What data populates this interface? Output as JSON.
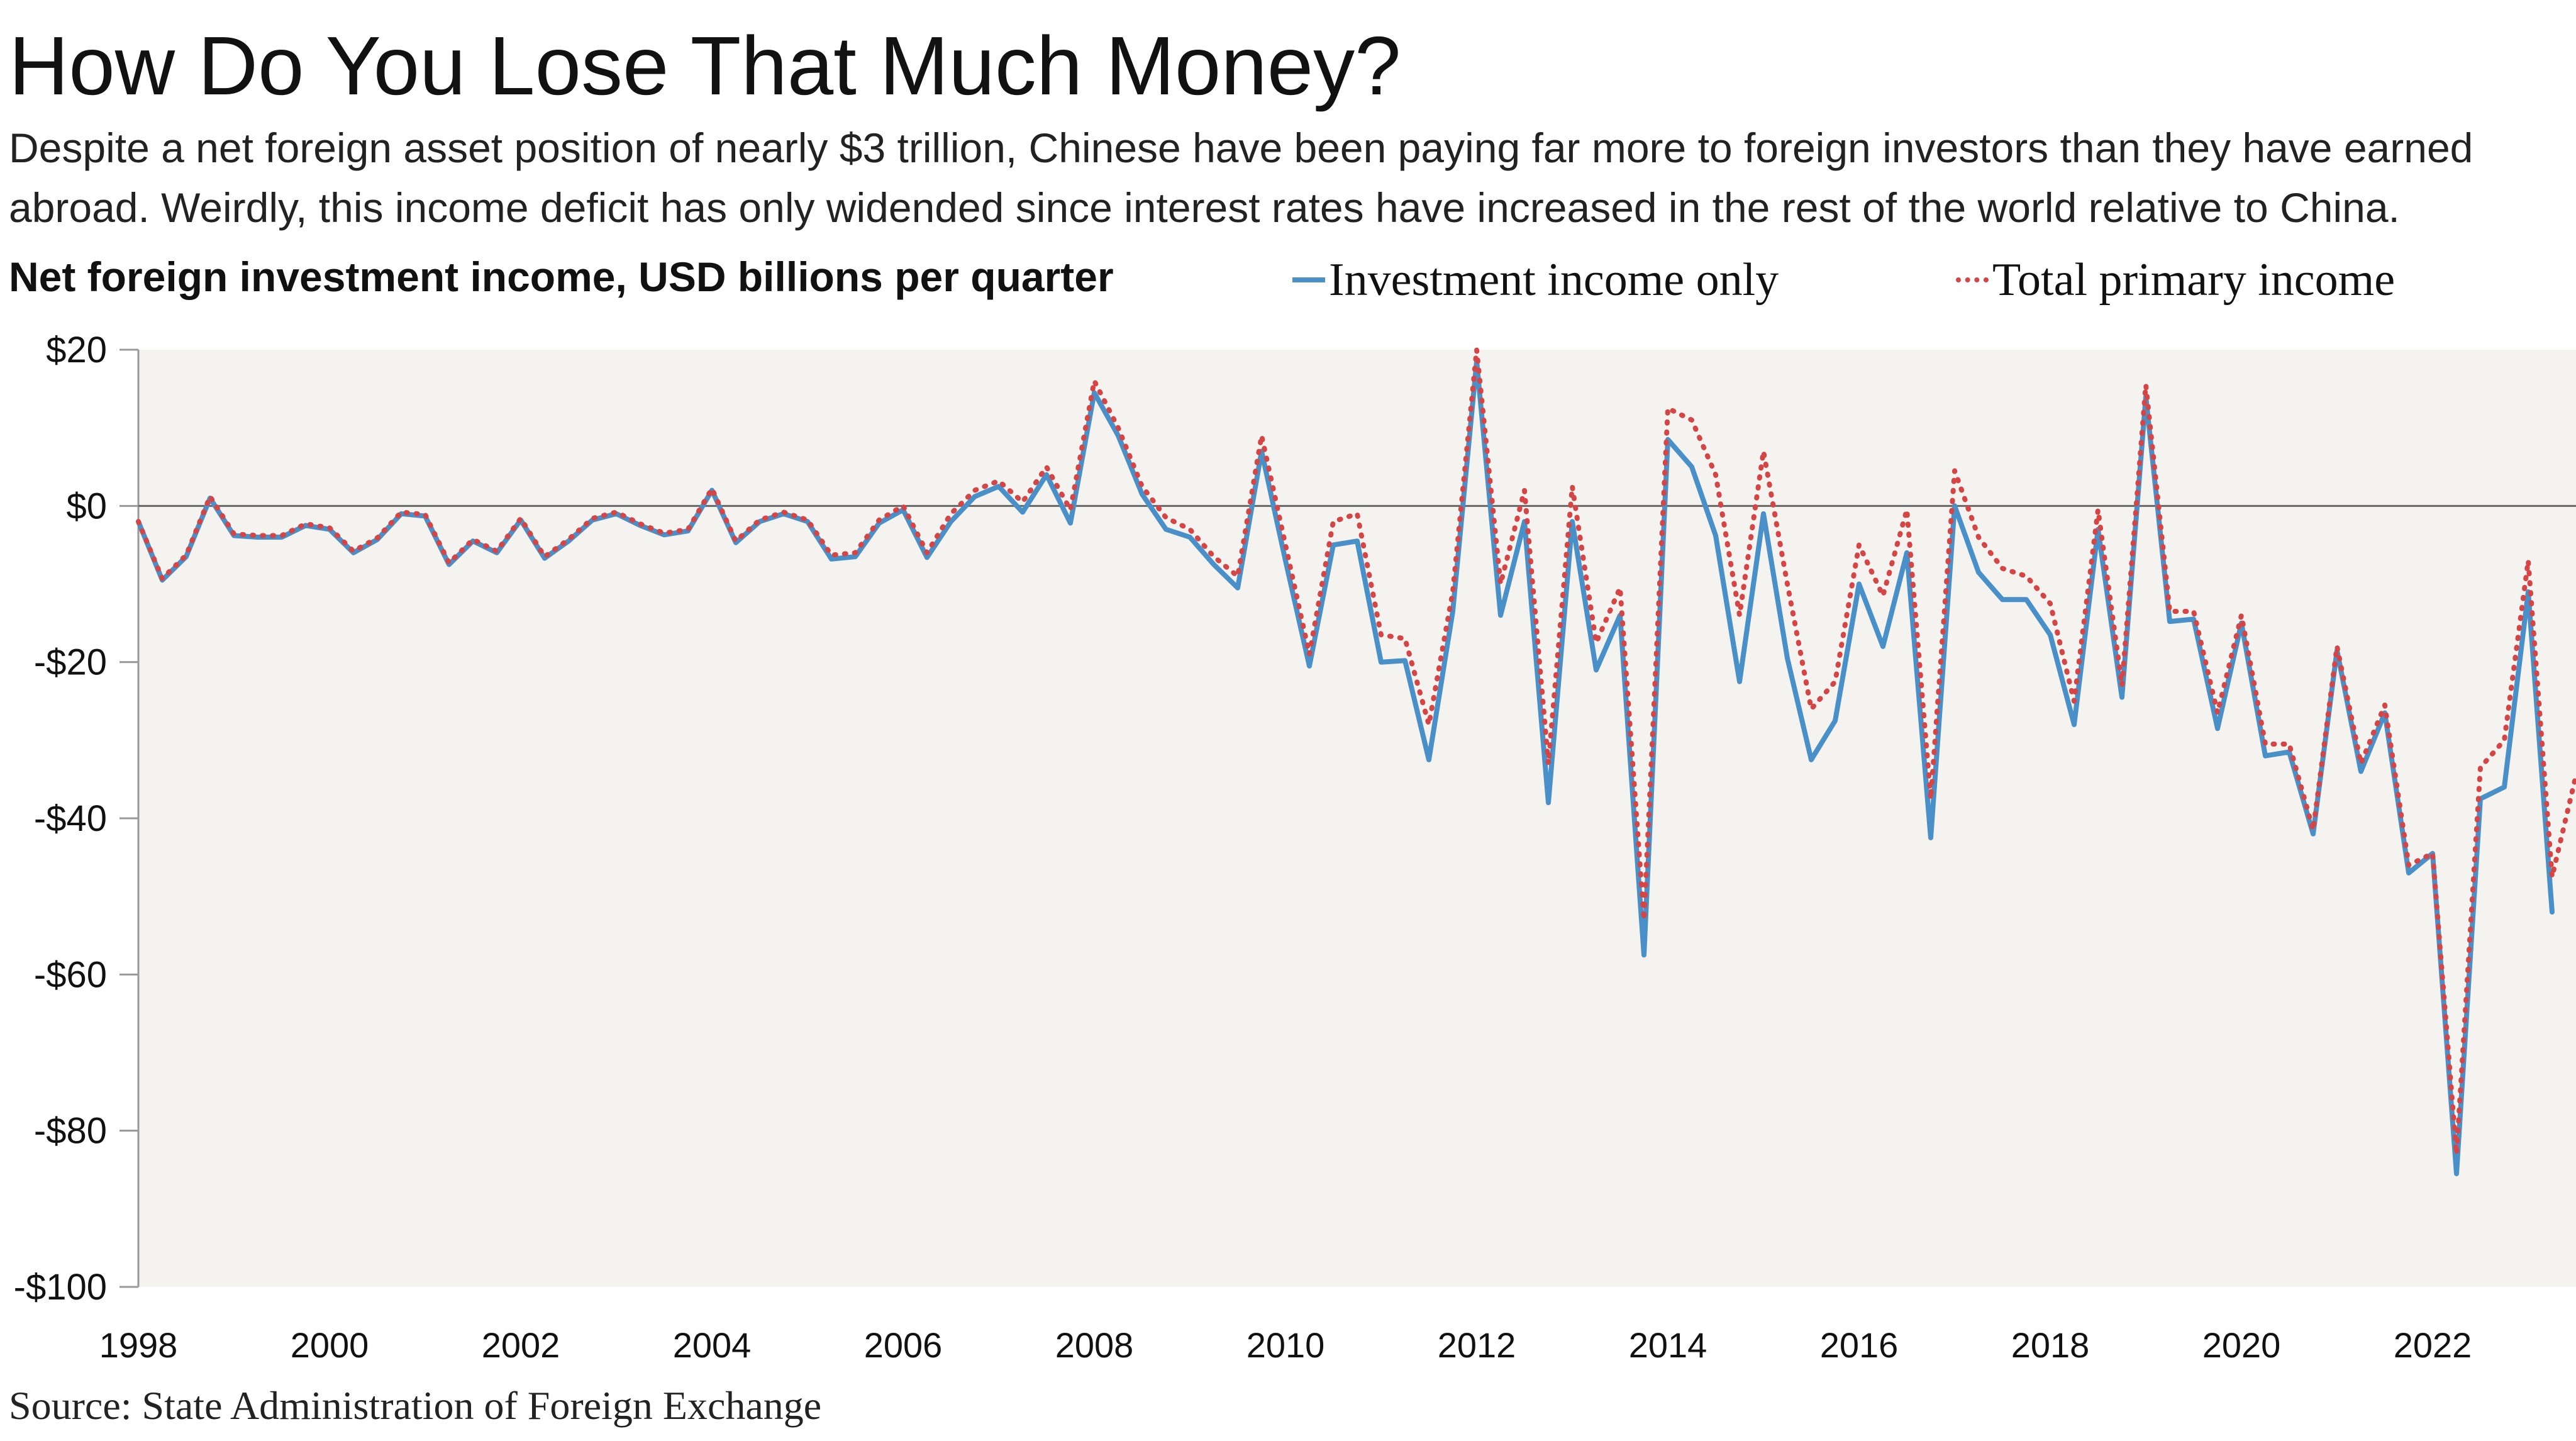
{
  "title": "How Do You Lose That Much Money?",
  "subtitle": "Despite a net foreign asset position of nearly $3 trillion, Chinese have been paying far more to foreign investors than they have earned abroad. Weirdly, this income deficit has only widended since interest rates have increased in the rest of the world relative to China.",
  "chart_label": "Net foreign investment income, USD billions per quarter",
  "source": "Source: State Administration of Foreign Exchange",
  "colors": {
    "investment_income": "#4a90c8",
    "total_primary_income": "#d64545",
    "plot_background": "#f5f3f0"
  },
  "chart_data": {
    "type": "line",
    "title": "How Do You Lose That Much Money?",
    "ylabel": "Net foreign investment income, USD billions per quarter",
    "xlim": [
      1998,
      2023.5
    ],
    "ylim": [
      -100,
      20
    ],
    "yticks": [
      20,
      0,
      -20,
      -40,
      -60,
      -80,
      -100
    ],
    "ytick_labels": [
      "$20",
      "$0",
      "-$20",
      "-$40",
      "-$60",
      "-$80",
      "-$100"
    ],
    "xticks": [
      1998,
      2000,
      2002,
      2004,
      2006,
      2008,
      2010,
      2012,
      2014,
      2016,
      2018,
      2020,
      2022
    ],
    "xtick_labels": [
      "1998",
      "2000",
      "2002",
      "2004",
      "2006",
      "2008",
      "2010",
      "2012",
      "2014",
      "2016",
      "2018",
      "2020",
      "2022"
    ],
    "grid": false,
    "zero_line": true,
    "legend_position": "top-right",
    "series": [
      {
        "name": "Investment income only",
        "style": "solid",
        "x": [
          1998.0,
          1998.25,
          1998.5,
          1998.75,
          1999.0,
          1999.25,
          1999.5,
          1999.75,
          2000.0,
          2000.25,
          2000.5,
          2000.75,
          2001.0,
          2001.25,
          2001.5,
          2001.75,
          2002.0,
          2002.25,
          2002.5,
          2002.75,
          2003.0,
          2003.25,
          2003.5,
          2003.75,
          2004.0,
          2004.25,
          2004.5,
          2004.75,
          2005.0,
          2005.25,
          2005.5,
          2005.75,
          2006.0,
          2006.25,
          2006.5,
          2006.75,
          2007.0,
          2007.25,
          2007.5,
          2007.75,
          2008.0,
          2008.25,
          2008.5,
          2008.75,
          2009.0,
          2009.25,
          2009.5,
          2009.75,
          2010.0,
          2010.25,
          2010.5,
          2010.75,
          2011.0,
          2011.25,
          2011.5,
          2011.75,
          2012.0,
          2012.25,
          2012.5,
          2012.75,
          2013.0,
          2013.25,
          2013.5,
          2013.75,
          2014.0,
          2014.25,
          2014.5,
          2014.75,
          2015.0,
          2015.25,
          2015.5,
          2015.75,
          2016.0,
          2016.25,
          2016.5,
          2016.75,
          2017.0,
          2017.25,
          2017.5,
          2017.75,
          2018.0,
          2018.25,
          2018.5,
          2018.75,
          2019.0,
          2019.25,
          2019.5,
          2019.75,
          2020.0,
          2020.25,
          2020.5,
          2020.75,
          2021.0,
          2021.25,
          2021.5,
          2021.75,
          2022.0,
          2022.25,
          2022.5,
          2022.75,
          2023.0,
          2023.25
        ],
        "values": [
          -2,
          -9.5,
          -6.5,
          1,
          -3.8,
          -4,
          -4,
          -2.5,
          -3,
          -6,
          -4.3,
          -1,
          -1.3,
          -7.5,
          -4.5,
          -6,
          -1.8,
          -6.7,
          -4.5,
          -1.8,
          -1,
          -2.5,
          -3.7,
          -3.2,
          2,
          -4.7,
          -2,
          -1,
          -2,
          -6.8,
          -6.5,
          -2.2,
          -0.5,
          -6.6,
          -2,
          1.2,
          2.5,
          -0.8,
          4,
          -2.2,
          14.5,
          9,
          1.5,
          -3,
          -4,
          -7.5,
          -10.5,
          7,
          -7,
          -20.5,
          -5,
          -4.5,
          -20,
          -19.8,
          -32.5,
          -13.5,
          18.5,
          -14,
          -2,
          -38,
          -2,
          -21,
          -14,
          -57.5,
          8.5,
          5,
          -3.8,
          -22.5,
          -1,
          -19.5,
          -32.5,
          -27.5,
          -10,
          -18,
          -6,
          -42.5,
          0,
          -8.5,
          -12,
          -12,
          -16.5,
          -28,
          -3,
          -24.5,
          14,
          -14.8,
          -14.5,
          -28.5,
          -15,
          -32,
          -31.5,
          -42,
          -18.5,
          -34,
          -26.5,
          -47,
          -44.5,
          -85.5,
          -37.5,
          -36,
          -11,
          -52
        ]
      },
      {
        "name": "Total primary income",
        "style": "dotted",
        "x": [
          1998.0,
          1998.25,
          1998.5,
          1998.75,
          1999.0,
          1999.25,
          1999.5,
          1999.75,
          2000.0,
          2000.25,
          2000.5,
          2000.75,
          2001.0,
          2001.25,
          2001.5,
          2001.75,
          2002.0,
          2002.25,
          2002.5,
          2002.75,
          2003.0,
          2003.25,
          2003.5,
          2003.75,
          2004.0,
          2004.25,
          2004.5,
          2004.75,
          2005.0,
          2005.25,
          2005.5,
          2005.75,
          2006.0,
          2006.25,
          2006.5,
          2006.75,
          2007.0,
          2007.25,
          2007.5,
          2007.75,
          2008.0,
          2008.25,
          2008.5,
          2008.75,
          2009.0,
          2009.25,
          2009.5,
          2009.75,
          2010.0,
          2010.25,
          2010.5,
          2010.75,
          2011.0,
          2011.25,
          2011.5,
          2011.75,
          2012.0,
          2012.25,
          2012.5,
          2012.75,
          2013.0,
          2013.25,
          2013.5,
          2013.75,
          2014.0,
          2014.25,
          2014.5,
          2014.75,
          2015.0,
          2015.25,
          2015.5,
          2015.75,
          2016.0,
          2016.25,
          2016.5,
          2016.75,
          2017.0,
          2017.25,
          2017.5,
          2017.75,
          2018.0,
          2018.25,
          2018.5,
          2018.75,
          2019.0,
          2019.25,
          2019.5,
          2019.75,
          2020.0,
          2020.25,
          2020.5,
          2020.75,
          2021.0,
          2021.25,
          2021.5,
          2021.75,
          2022.0,
          2022.25,
          2022.5,
          2022.75,
          2023.0,
          2023.25,
          2023.5
        ],
        "values": [
          -2,
          -9.3,
          -6.3,
          1.2,
          -3.6,
          -3.8,
          -3.8,
          -2.3,
          -2.8,
          -5.8,
          -4.1,
          -0.8,
          -1.1,
          -7.3,
          -4.3,
          -5.8,
          -1.6,
          -6.5,
          -4.3,
          -1.6,
          -0.8,
          -2.3,
          -3.5,
          -3,
          2.2,
          -4.5,
          -1.8,
          -0.8,
          -1.8,
          -6.3,
          -6,
          -1.8,
          0,
          -6,
          -1,
          2,
          3.2,
          0.5,
          5,
          -0.5,
          16,
          10,
          2.5,
          -1.5,
          -3,
          -6.5,
          -9,
          9,
          -5,
          -19,
          -2,
          -1,
          -16.5,
          -17,
          -28,
          -11,
          20,
          -10,
          2,
          -33,
          2.5,
          -17.5,
          -10.5,
          -53,
          12.5,
          11,
          4,
          -14,
          7,
          -10,
          -26,
          -22.5,
          -5,
          -11.5,
          -0.5,
          -37.5,
          4.5,
          -4,
          -8,
          -9,
          -12.5,
          -25,
          -0.5,
          -23,
          15.5,
          -13.5,
          -13.5,
          -26.5,
          -14,
          -30.5,
          -30.5,
          -41.5,
          -18,
          -33,
          -25.5,
          -46,
          -44.5,
          -83,
          -33.5,
          -30,
          -7,
          -47.5,
          -34.5
        ]
      }
    ]
  }
}
